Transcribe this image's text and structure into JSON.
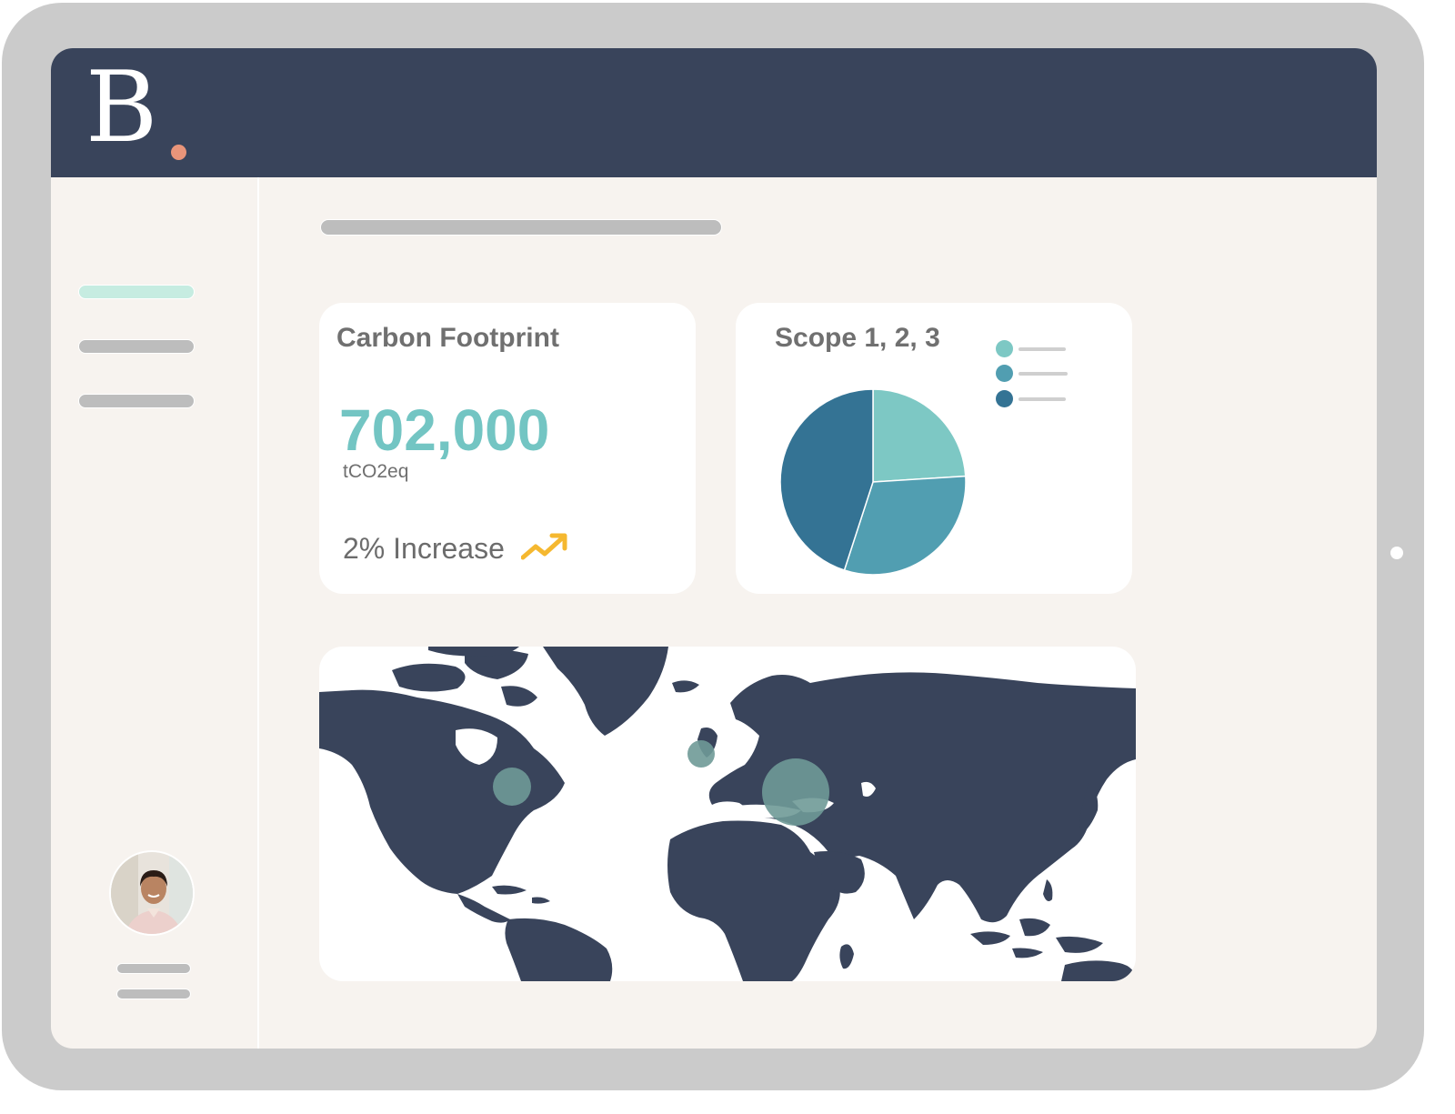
{
  "app": {
    "logo_letter": "B",
    "brand_colors": {
      "header": "#39445b",
      "accent_dot": "#e9957a",
      "active_nav": "#c6ece1"
    }
  },
  "sidebar": {
    "items": [
      {
        "state": "active"
      },
      {
        "state": "inactive"
      },
      {
        "state": "inactive"
      }
    ],
    "user": {
      "avatar_icon": "user-avatar"
    }
  },
  "cards": {
    "carbon": {
      "title": "Carbon Footprint",
      "value": "702,000",
      "unit": "tCO2eq",
      "trend_text": "2% Increase",
      "trend_icon": "trending-up-icon",
      "value_color": "#73c5c3",
      "trend_color": "#f5b830"
    },
    "scope": {
      "title": "Scope 1, 2, 3"
    }
  },
  "chart_data": {
    "type": "pie",
    "title": "Scope 1, 2, 3",
    "slices": [
      {
        "value": 24,
        "color": "#7dc8c4"
      },
      {
        "value": 31,
        "color": "#519eb1"
      },
      {
        "value": 45,
        "color": "#347394"
      }
    ],
    "legend_placement": "top-right"
  },
  "map": {
    "land_color": "#39445b",
    "bubble_color": "#6f9a97",
    "bubbles": [
      {
        "region": "north-america-east",
        "size": "medium"
      },
      {
        "region": "western-europe",
        "size": "small"
      },
      {
        "region": "middle-east",
        "size": "large"
      }
    ]
  }
}
